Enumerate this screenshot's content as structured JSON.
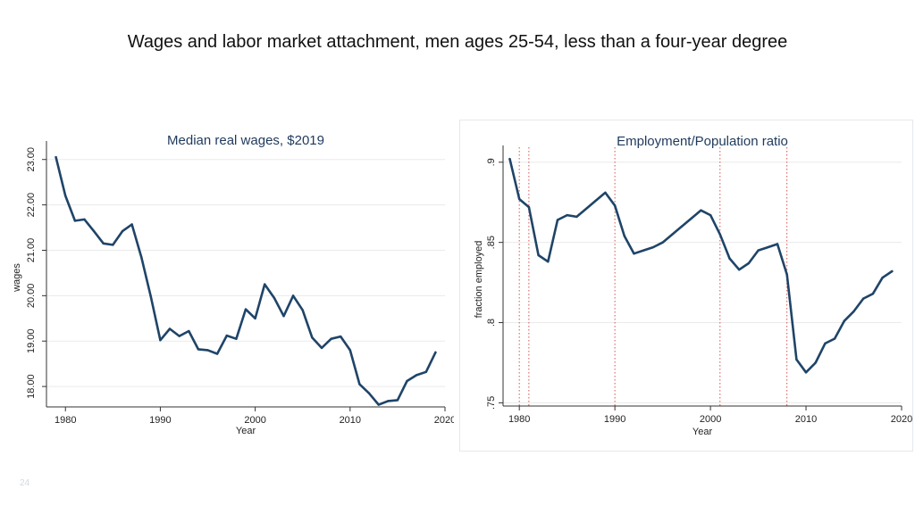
{
  "slide": {
    "title": "Wages and labor market attachment, men ages 25-54, less than a four-year degree",
    "page_number": "24"
  },
  "colors": {
    "line": "#1f4468",
    "title_text": "#1f3a5c",
    "grid": "#eaeaea",
    "recession_line": "#d9534f"
  },
  "chart_data": [
    {
      "type": "line",
      "title": "Median real wages, $2019",
      "xlabel": "Year",
      "ylabel": "wages",
      "xlim": [
        1978,
        2020
      ],
      "ylim": [
        17.55,
        23.25
      ],
      "x_ticks": [
        1980,
        1990,
        2000,
        2010,
        2020
      ],
      "x_tick_labels": [
        "1980",
        "1990",
        "2000",
        "2010",
        "2020"
      ],
      "y_ticks": [
        18,
        19,
        20,
        21,
        22,
        23
      ],
      "y_tick_labels": [
        "18.00",
        "19.00",
        "20.00",
        "21.00",
        "22.00",
        "23.00"
      ],
      "grid": true,
      "x": [
        1979,
        1980,
        1981,
        1982,
        1983,
        1984,
        1985,
        1986,
        1987,
        1988,
        1989,
        1990,
        1991,
        1992,
        1993,
        1994,
        1995,
        1996,
        1997,
        1998,
        1999,
        2000,
        2001,
        2002,
        2003,
        2004,
        2005,
        2006,
        2007,
        2008,
        2009,
        2010,
        2011,
        2012,
        2013,
        2014,
        2015,
        2016,
        2017,
        2018,
        2019
      ],
      "series": [
        {
          "values": [
            23.05,
            22.2,
            21.65,
            21.68,
            21.42,
            21.15,
            21.12,
            21.42,
            21.57,
            20.85,
            19.98,
            19.02,
            19.27,
            19.11,
            19.22,
            18.82,
            18.8,
            18.72,
            19.12,
            19.05,
            19.7,
            19.5,
            20.25,
            19.95,
            19.55,
            20.0,
            19.68,
            19.08,
            18.85,
            19.05,
            19.1,
            18.8,
            18.05,
            17.85,
            17.6,
            17.68,
            17.7,
            18.12,
            18.25,
            18.32,
            18.75
          ]
        }
      ]
    },
    {
      "type": "line",
      "title": "Employment/Population ratio",
      "xlabel": "Year",
      "ylabel": "fraction employed",
      "xlim": [
        1978.3,
        2020
      ],
      "ylim": [
        0.748,
        0.906
      ],
      "x_ticks": [
        1980,
        1990,
        2000,
        2010,
        2020
      ],
      "x_tick_labels": [
        "1980",
        "1990",
        "2000",
        "2010",
        "2020"
      ],
      "y_ticks": [
        0.75,
        0.8,
        0.85,
        0.9
      ],
      "y_tick_labels": [
        ".75",
        ".8",
        ".85",
        ".9"
      ],
      "grid": true,
      "vertical_reference_years": [
        1980,
        1981,
        1990,
        2001,
        2008
      ],
      "x": [
        1979,
        1980,
        1981,
        1982,
        1983,
        1984,
        1985,
        1986,
        1987,
        1988,
        1989,
        1990,
        1991,
        1992,
        1993,
        1994,
        1995,
        1996,
        1997,
        1998,
        1999,
        2000,
        2001,
        2002,
        2003,
        2004,
        2005,
        2006,
        2007,
        2008,
        2009,
        2010,
        2011,
        2012,
        2013,
        2014,
        2015,
        2016,
        2017,
        2018,
        2019
      ],
      "series": [
        {
          "values": [
            0.902,
            0.877,
            0.872,
            0.842,
            0.838,
            0.864,
            0.867,
            0.866,
            0.871,
            0.876,
            0.881,
            0.873,
            0.854,
            0.843,
            0.845,
            0.847,
            0.85,
            0.855,
            0.86,
            0.865,
            0.87,
            0.867,
            0.855,
            0.84,
            0.833,
            0.837,
            0.845,
            0.847,
            0.849,
            0.83,
            0.777,
            0.769,
            0.775,
            0.787,
            0.79,
            0.801,
            0.807,
            0.815,
            0.818,
            0.828,
            0.832
          ]
        }
      ]
    }
  ]
}
